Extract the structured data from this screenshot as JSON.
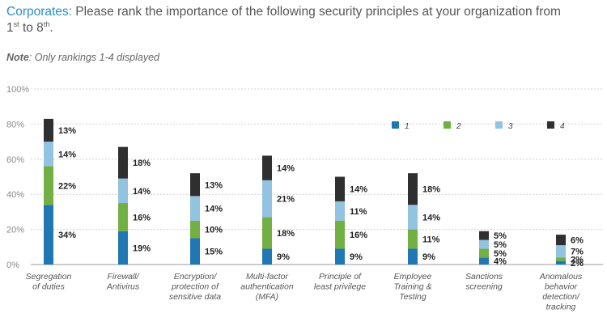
{
  "header": {
    "lead": "Corporates:",
    "text": " Please rank the importance of the following security principles at your organization from 1",
    "sup1": "st",
    "mid": " to 8",
    "sup2": "th",
    "end": "."
  },
  "note": {
    "label": "Note",
    "text": ": Only rankings 1-4 displayed"
  },
  "chart_data": {
    "type": "bar",
    "stacked": true,
    "categories": [
      [
        "Segregation",
        "of duties"
      ],
      [
        "Firewall/",
        "Antivirus"
      ],
      [
        "Encryption/",
        "protection of",
        "sensitive data"
      ],
      [
        "Multi-factor",
        "authentication",
        "(MFA)"
      ],
      [
        "Principle of",
        "least privilege"
      ],
      [
        "Employee",
        "Training &",
        "Testing"
      ],
      [
        "Sanctions",
        "screening"
      ],
      [
        "Anomalous",
        "behavior",
        "detection/",
        "tracking"
      ]
    ],
    "series": [
      {
        "name": "1",
        "color": "#1f77b4",
        "values": [
          34,
          19,
          15,
          9,
          9,
          9,
          4,
          2
        ]
      },
      {
        "name": "2",
        "color": "#72b043",
        "values": [
          22,
          16,
          10,
          18,
          16,
          11,
          5,
          2
        ]
      },
      {
        "name": "3",
        "color": "#92c3e0",
        "values": [
          14,
          14,
          14,
          21,
          11,
          14,
          5,
          7
        ]
      },
      {
        "name": "4",
        "color": "#2f2f2f",
        "values": [
          13,
          18,
          13,
          14,
          14,
          18,
          5,
          6
        ]
      }
    ],
    "ylim": [
      0,
      100
    ],
    "yticks": [
      "0%",
      "20%",
      "40%",
      "60%",
      "80%",
      "100%"
    ],
    "grid": true,
    "legend": "top-right"
  }
}
